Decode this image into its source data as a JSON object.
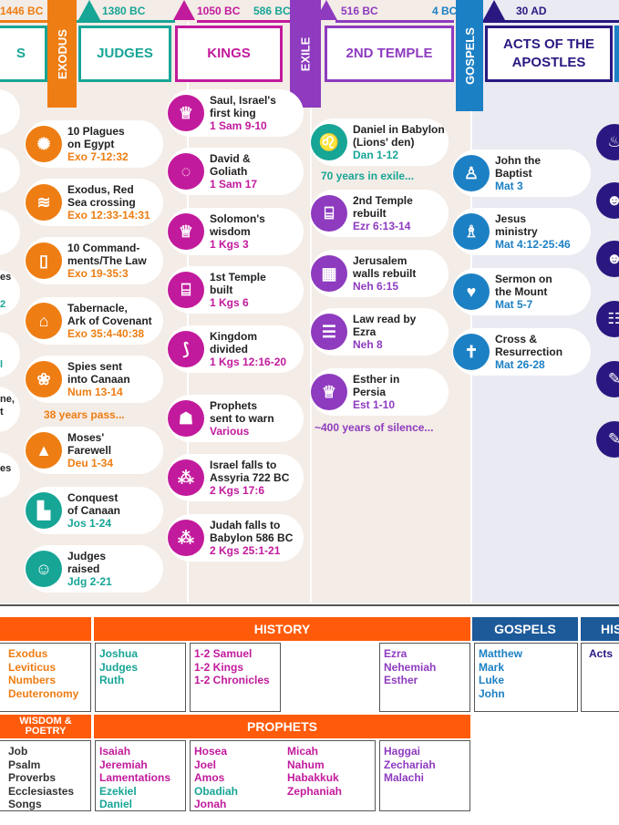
{
  "dates": [
    "1446 BC",
    "1380 BC",
    "1050 BC",
    "586 BC",
    "516 BC",
    "4 BC",
    "30 AD"
  ],
  "eras": {
    "left_cut": "S",
    "exodus": "EXODUS",
    "judges": "JUDGES",
    "kings": "KINGS",
    "exile": "EXILE",
    "second_temple": "2ND TEMPLE",
    "gospels": "GOSPELS",
    "acts_line1": "ACTS OF THE",
    "acts_line2": "APOSTLES"
  },
  "left_stubs": [
    "es",
    "2",
    "l",
    "ne,",
    "t",
    "es"
  ],
  "col1": [
    {
      "title": "10 Plagues\non Egypt",
      "ref": "Exo 7-12:32",
      "icon": "locust-icon"
    },
    {
      "title": "Exodus, Red\nSea crossing",
      "ref": "Exo 12:33-14:31",
      "icon": "sea-icon"
    },
    {
      "title": "10 Command-\nments/The Law",
      "ref": "Exo 19-35:3",
      "icon": "tablets-icon"
    },
    {
      "title": "Tabernacle,\nArk of Covenant",
      "ref": "Exo 35:4-40:38",
      "icon": "tent-icon"
    },
    {
      "title": "Spies sent\ninto Canaan",
      "ref": "Num 13-14",
      "icon": "grapes-icon"
    },
    {
      "title": "Moses'\nFarewell",
      "ref": "Deu 1-34",
      "icon": "mountain-icon"
    },
    {
      "title": "Conquest\nof Canaan",
      "ref": "Jos 1-24",
      "icon": "wall-icon"
    },
    {
      "title": "Judges\nraised",
      "ref": "Jdg 2-21",
      "icon": "judge-icon"
    }
  ],
  "col1_note": "38 years pass...",
  "col2": [
    {
      "title": "Saul, Israel's\nfirst king",
      "ref": "1 Sam 9-10",
      "icon": "crown-icon"
    },
    {
      "title": "David &\nGoliath",
      "ref": "1 Sam 17",
      "icon": "sling-icon"
    },
    {
      "title": "Solomon's\nwisdom",
      "ref": "1 Kgs 3",
      "icon": "crown-icon"
    },
    {
      "title": "1st Temple\nbuilt",
      "ref": "1 Kgs 6",
      "icon": "temple-icon"
    },
    {
      "title": "Kingdom\ndivided",
      "ref": "1 Kgs 12:16-20",
      "icon": "split-icon"
    },
    {
      "title": "Prophets\nsent to warn",
      "ref": "Various",
      "icon": "prophet-icon"
    },
    {
      "title": "Israel falls to\nAssyria 722 BC",
      "ref": "2 Kgs 17:6",
      "icon": "ruins-icon"
    },
    {
      "title": "Judah falls to\nBabylon 586 BC",
      "ref": "2 Kgs 25:1-21",
      "icon": "ruins-icon"
    }
  ],
  "col3": [
    {
      "title": "Daniel in Babylon\n(Lions' den)",
      "ref": "Dan 1-12",
      "icon": "lion-icon"
    },
    {
      "title": "2nd Temple\nrebuilt",
      "ref": "Ezr 6:13-14",
      "icon": "temple-icon"
    },
    {
      "title": "Jerusalem\nwalls rebuilt",
      "ref": "Neh 6:15",
      "icon": "wall-icon"
    },
    {
      "title": "Law read by\nEzra",
      "ref": "Neh 8",
      "icon": "scroll-icon"
    },
    {
      "title": "Esther in\nPersia",
      "ref": "Est 1-10",
      "icon": "crown-icon"
    }
  ],
  "col3_notes": [
    "70 years in exile...",
    "~400 years of silence..."
  ],
  "col4": [
    {
      "title": "John the\nBaptist",
      "ref": "Mat 3",
      "icon": "person-icon"
    },
    {
      "title": "Jesus\nministry",
      "ref": "Mat 4:12-25:46",
      "icon": "teaching-icon"
    },
    {
      "title": "Sermon on\nthe Mount",
      "ref": "Mat 5-7",
      "icon": "heart-icon"
    },
    {
      "title": "Cross &\nResurrection",
      "ref": "Mat 26-28",
      "icon": "cross-icon"
    }
  ],
  "col5_icons": [
    "flame-icon",
    "people-icon",
    "group-icon",
    "meeting-icon",
    "quill-icon",
    "quill-icon"
  ],
  "books": {
    "law": [
      "Exodus",
      "Leviticus",
      "Numbers",
      "Deuteronomy"
    ],
    "history_header": "HISTORY",
    "history1": [
      "Joshua",
      "Judges",
      "Ruth"
    ],
    "history2": [
      "1-2 Samuel",
      "1-2 Kings",
      "1-2 Chronicles"
    ],
    "history3": [
      "Ezra",
      "Nehemiah",
      "Esther"
    ],
    "gospels_header": "GOSPELS",
    "gospels": [
      "Matthew",
      "Mark",
      "Luke",
      "John"
    ],
    "hist_cut": "HIS",
    "acts": "Acts",
    "wisdom_header_1": "WISDOM &",
    "wisdom_header_2": "POETRY",
    "wisdom": [
      "Job",
      "Psalm",
      "Proverbs",
      "Ecclesiastes",
      "Songs"
    ],
    "prophets_header": "PROPHETS",
    "major": [
      "Isaiah",
      "Jeremiah",
      "Lamentations",
      "Ezekiel",
      "Daniel"
    ],
    "minor1": [
      "Hosea",
      "Joel",
      "Amos",
      "Obadiah",
      "Jonah"
    ],
    "minor2": [
      "Micah",
      "Nahum",
      "Habakkuk",
      "Zephaniah"
    ],
    "minor3": [
      "Haggai",
      "Zechariah",
      "Malachi"
    ]
  },
  "colors": {
    "orange": "#ee7d13",
    "teal": "#17a596",
    "magenta": "#c21a9c",
    "purple": "#8e3bbf",
    "blue": "#1c80c4",
    "navy": "#2a1880",
    "history_orange": "#ff5b0a"
  }
}
